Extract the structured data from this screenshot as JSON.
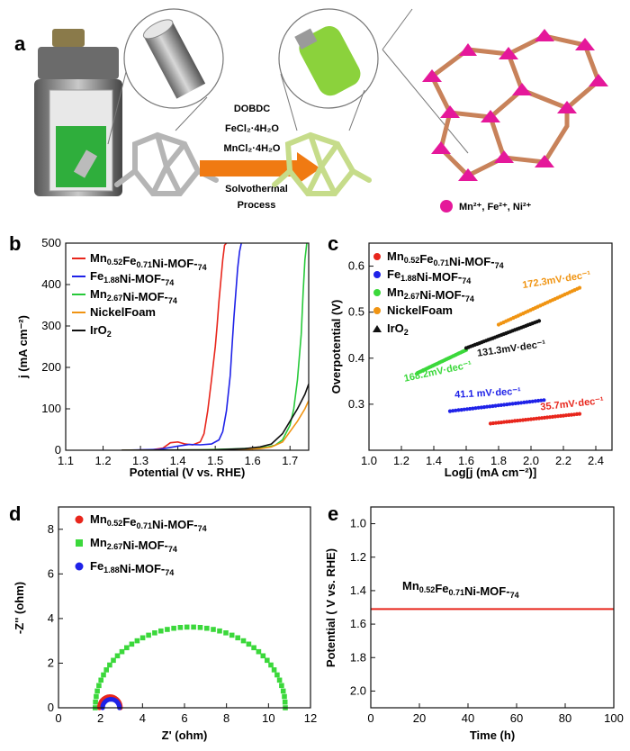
{
  "panel_labels": [
    "a",
    "b",
    "c",
    "d",
    "e"
  ],
  "schematic": {
    "reagents": [
      "DOBDC",
      "FeCl₂·4H₂O",
      "MnCl₂·4H₂O"
    ],
    "process": [
      "Solvothermal",
      "Process"
    ],
    "ions": "Mn²⁺, Fe²⁺, Ni²⁺",
    "colors": {
      "arrow": "#f07a12",
      "mof_green": "#8bd23c",
      "ion": "#e5189a",
      "frame": "#c8825a"
    }
  },
  "chart_data": [
    {
      "panel": "b",
      "type": "line",
      "xlabel": "Potential (V vs. RHE)",
      "ylabel": "j (mA cm⁻²)",
      "xlim": [
        1.1,
        1.75
      ],
      "ylim": [
        0,
        500
      ],
      "xticks": [
        "1.1",
        "1.2",
        "1.3",
        "1.4",
        "1.5",
        "1.6",
        "1.7"
      ],
      "yticks": [
        "0",
        "100",
        "200",
        "300",
        "400",
        "500"
      ],
      "legend_position": "top-left",
      "series": [
        {
          "name": "Mn0.52Fe0.71Ni-MOF-74",
          "color": "#e8261c",
          "x": [
            1.25,
            1.33,
            1.36,
            1.38,
            1.4,
            1.42,
            1.44,
            1.46,
            1.47,
            1.48,
            1.49,
            1.5,
            1.505,
            1.51,
            1.515,
            1.52,
            1.525,
            1.53
          ],
          "y": [
            0,
            1,
            5,
            18,
            20,
            15,
            13,
            20,
            40,
            95,
            170,
            250,
            300,
            360,
            410,
            460,
            495,
            500
          ]
        },
        {
          "name": "Fe1.88Ni-MOF-74",
          "color": "#1f22e8",
          "x": [
            1.25,
            1.35,
            1.4,
            1.43,
            1.46,
            1.49,
            1.51,
            1.52,
            1.53,
            1.54,
            1.545,
            1.55,
            1.555,
            1.56,
            1.565,
            1.57
          ],
          "y": [
            0,
            2,
            10,
            14,
            13,
            15,
            25,
            45,
            95,
            180,
            250,
            320,
            380,
            440,
            480,
            500
          ]
        },
        {
          "name": "Mn2.67Ni-MOF-74",
          "color": "#27c93a",
          "x": [
            1.25,
            1.45,
            1.55,
            1.6,
            1.64,
            1.66,
            1.68,
            1.7,
            1.71,
            1.72,
            1.73,
            1.735,
            1.74,
            1.745
          ],
          "y": [
            0,
            1,
            3,
            5,
            8,
            12,
            25,
            60,
            100,
            170,
            280,
            380,
            460,
            500
          ]
        },
        {
          "name": "Nickel Foam",
          "color": "#f09412",
          "x": [
            1.25,
            1.55,
            1.62,
            1.65,
            1.68,
            1.7,
            1.72,
            1.74,
            1.75
          ],
          "y": [
            0,
            1,
            4,
            8,
            20,
            45,
            70,
            100,
            120
          ]
        },
        {
          "name": "IrO2",
          "color": "#111111",
          "x": [
            1.25,
            1.5,
            1.58,
            1.62,
            1.65,
            1.68,
            1.7,
            1.72,
            1.74,
            1.75
          ],
          "y": [
            0,
            1,
            4,
            8,
            15,
            40,
            70,
            100,
            135,
            160
          ]
        }
      ]
    },
    {
      "panel": "c",
      "type": "scatter",
      "xlabel": "Log[j (mA cm⁻²)]",
      "ylabel": "Overpotential  (V)",
      "xlim": [
        1.0,
        2.5
      ],
      "ylim": [
        0.2,
        0.65
      ],
      "xticks": [
        "1.0",
        "1.2",
        "1.4",
        "1.6",
        "1.8",
        "2.0",
        "2.2",
        "2.4"
      ],
      "yticks": [
        "0.3",
        "0.4",
        "0.5",
        "0.6"
      ],
      "legend_position": "top-left",
      "series": [
        {
          "name": "Mn0.52Fe0.71Ni-MOF-74",
          "color": "#e8261c",
          "x_range": [
            1.75,
            2.3
          ],
          "y_range": [
            0.258,
            0.279
          ],
          "annotation": "35.7mV·dec⁻¹"
        },
        {
          "name": "Fe1.88Ni-MOF-74",
          "color": "#1f22e8",
          "x_range": [
            1.5,
            2.08
          ],
          "y_range": [
            0.285,
            0.309
          ],
          "annotation": "41.1 mV·dec⁻¹"
        },
        {
          "name": "Mn2.67Ni-MOF-74",
          "color": "#3bd83b",
          "x_range": [
            1.3,
            1.6
          ],
          "y_range": [
            0.368,
            0.418
          ],
          "annotation": "168.2mV·dec⁻¹"
        },
        {
          "name": "Nickel Foam",
          "color": "#f09412",
          "x_range": [
            1.8,
            2.3
          ],
          "y_range": [
            0.473,
            0.553
          ],
          "annotation": "172.3mV·dec⁻¹"
        },
        {
          "name": "IrO2",
          "color": "#111111",
          "x_range": [
            1.6,
            2.05
          ],
          "y_range": [
            0.422,
            0.481
          ],
          "annotation": "131.3mV·dec⁻¹"
        }
      ]
    },
    {
      "panel": "d",
      "type": "scatter",
      "xlabel": "Z' (ohm)",
      "ylabel": "-Z'' (ohm)",
      "xlim": [
        0,
        12
      ],
      "ylim": [
        0,
        9
      ],
      "xticks": [
        "0",
        "2",
        "4",
        "6",
        "8",
        "10",
        "12"
      ],
      "yticks": [
        "0",
        "2",
        "4",
        "6",
        "8"
      ],
      "legend_position": "top-left",
      "series": [
        {
          "name": "Mn0.52Fe0.71Ni-MOF-74",
          "color": "#e8261c",
          "z_start": 1.95,
          "z_end": 2.95,
          "peak": 0.5
        },
        {
          "name": "Mn2.67Ni-MOF-74",
          "color": "#3bd83b",
          "z_start": 1.75,
          "z_end": 10.8,
          "peak": 3.62
        },
        {
          "name": "Fe1.88Ni-MOF-74",
          "color": "#1f22e8",
          "z_start": 2.1,
          "z_end": 2.9,
          "peak": 0.38
        }
      ]
    },
    {
      "panel": "e",
      "type": "line",
      "xlabel": "Time (h)",
      "ylabel": "Potential ( V vs. RHE)",
      "xlim": [
        0,
        100
      ],
      "ylim": [
        2.1,
        0.9
      ],
      "y_inverted": true,
      "xticks": [
        "0",
        "20",
        "40",
        "60",
        "80",
        "100"
      ],
      "yticks": [
        "1.0",
        "1.2",
        "1.4",
        "1.6",
        "1.8",
        "2.0"
      ],
      "annotation": "Mn0.52Fe0.71Ni-MOF-74",
      "series": [
        {
          "name": "Mn0.52Fe0.71Ni-MOF-74",
          "color": "#e8261c",
          "x": [
            0,
            100
          ],
          "y": [
            1.51,
            1.51
          ]
        }
      ]
    }
  ]
}
